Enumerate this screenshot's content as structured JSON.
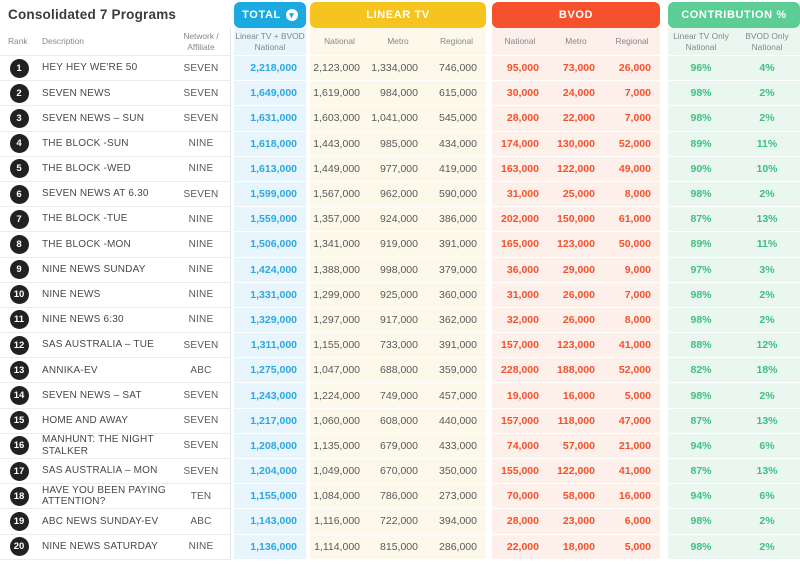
{
  "chart_data": {
    "type": "table",
    "title": "Consolidated 7 Programs",
    "icons": {
      "total_sort": "▾"
    },
    "colors": {
      "total": "#1CA8E1",
      "total_text": "#2BA9E0",
      "total_tint": "#E8F5FC",
      "linear": "#F5C41E",
      "linear_tint": "#FCF8EA",
      "bvod": "#F4512C",
      "bvod_tint": "#FDEFEA",
      "contrib": "#5CCD94",
      "contrib_text": "#3FC07F",
      "contrib_tint": "#EAF6F0"
    },
    "columns": {
      "rank": "Rank",
      "description": "Description",
      "network": "Network /\nAffiliate"
    },
    "groups": {
      "total": {
        "label": "TOTAL",
        "sub": "Linear TV + BVOD\nNational"
      },
      "linear": {
        "label": "LINEAR TV",
        "subs": [
          "National",
          "Metro",
          "Regional"
        ]
      },
      "bvod": {
        "label": "BVOD",
        "subs": [
          "National",
          "Metro",
          "Regional"
        ]
      },
      "contribution": {
        "label": "CONTRIBUTION %",
        "subs": [
          "Linear TV Only\nNational",
          "BVOD Only\nNational"
        ]
      }
    },
    "rows": [
      {
        "rank": "1",
        "description": "HEY HEY WE'RE 50",
        "network": "SEVEN",
        "total": "2,218,000",
        "linear": [
          "2,123,000",
          "1,334,000",
          "746,000"
        ],
        "bvod": [
          "95,000",
          "73,000",
          "26,000"
        ],
        "contribution": [
          "96%",
          "4%"
        ]
      },
      {
        "rank": "2",
        "description": "SEVEN NEWS",
        "network": "SEVEN",
        "total": "1,649,000",
        "linear": [
          "1,619,000",
          "984,000",
          "615,000"
        ],
        "bvod": [
          "30,000",
          "24,000",
          "7,000"
        ],
        "contribution": [
          "98%",
          "2%"
        ]
      },
      {
        "rank": "3",
        "description": "SEVEN NEWS – SUN",
        "network": "SEVEN",
        "total": "1,631,000",
        "linear": [
          "1,603,000",
          "1,041,000",
          "545,000"
        ],
        "bvod": [
          "28,000",
          "22,000",
          "7,000"
        ],
        "contribution": [
          "98%",
          "2%"
        ]
      },
      {
        "rank": "4",
        "description": "THE BLOCK -SUN",
        "network": "NINE",
        "total": "1,618,000",
        "linear": [
          "1,443,000",
          "985,000",
          "434,000"
        ],
        "bvod": [
          "174,000",
          "130,000",
          "52,000"
        ],
        "contribution": [
          "89%",
          "11%"
        ]
      },
      {
        "rank": "5",
        "description": "THE BLOCK -WED",
        "network": "NINE",
        "total": "1,613,000",
        "linear": [
          "1,449,000",
          "977,000",
          "419,000"
        ],
        "bvod": [
          "163,000",
          "122,000",
          "49,000"
        ],
        "contribution": [
          "90%",
          "10%"
        ]
      },
      {
        "rank": "6",
        "description": "SEVEN NEWS AT 6.30",
        "network": "SEVEN",
        "total": "1,599,000",
        "linear": [
          "1,567,000",
          "962,000",
          "590,000"
        ],
        "bvod": [
          "31,000",
          "25,000",
          "8,000"
        ],
        "contribution": [
          "98%",
          "2%"
        ]
      },
      {
        "rank": "7",
        "description": "THE BLOCK -TUE",
        "network": "NINE",
        "total": "1,559,000",
        "linear": [
          "1,357,000",
          "924,000",
          "386,000"
        ],
        "bvod": [
          "202,000",
          "150,000",
          "61,000"
        ],
        "contribution": [
          "87%",
          "13%"
        ]
      },
      {
        "rank": "8",
        "description": "THE BLOCK -MON",
        "network": "NINE",
        "total": "1,506,000",
        "linear": [
          "1,341,000",
          "919,000",
          "391,000"
        ],
        "bvod": [
          "165,000",
          "123,000",
          "50,000"
        ],
        "contribution": [
          "89%",
          "11%"
        ]
      },
      {
        "rank": "9",
        "description": "NINE NEWS SUNDAY",
        "network": "NINE",
        "total": "1,424,000",
        "linear": [
          "1,388,000",
          "998,000",
          "379,000"
        ],
        "bvod": [
          "36,000",
          "29,000",
          "9,000"
        ],
        "contribution": [
          "97%",
          "3%"
        ]
      },
      {
        "rank": "10",
        "description": "NINE NEWS",
        "network": "NINE",
        "total": "1,331,000",
        "linear": [
          "1,299,000",
          "925,000",
          "360,000"
        ],
        "bvod": [
          "31,000",
          "26,000",
          "7,000"
        ],
        "contribution": [
          "98%",
          "2%"
        ]
      },
      {
        "rank": "11",
        "description": "NINE NEWS 6:30",
        "network": "NINE",
        "total": "1,329,000",
        "linear": [
          "1,297,000",
          "917,000",
          "362,000"
        ],
        "bvod": [
          "32,000",
          "26,000",
          "8,000"
        ],
        "contribution": [
          "98%",
          "2%"
        ]
      },
      {
        "rank": "12",
        "description": "SAS AUSTRALIA – TUE",
        "network": "SEVEN",
        "total": "1,311,000",
        "linear": [
          "1,155,000",
          "733,000",
          "391,000"
        ],
        "bvod": [
          "157,000",
          "123,000",
          "41,000"
        ],
        "contribution": [
          "88%",
          "12%"
        ]
      },
      {
        "rank": "13",
        "description": "ANNIKA-EV",
        "network": "ABC",
        "total": "1,275,000",
        "linear": [
          "1,047,000",
          "688,000",
          "359,000"
        ],
        "bvod": [
          "228,000",
          "188,000",
          "52,000"
        ],
        "contribution": [
          "82%",
          "18%"
        ]
      },
      {
        "rank": "14",
        "description": "SEVEN NEWS – SAT",
        "network": "SEVEN",
        "total": "1,243,000",
        "linear": [
          "1,224,000",
          "749,000",
          "457,000"
        ],
        "bvod": [
          "19,000",
          "16,000",
          "5,000"
        ],
        "contribution": [
          "98%",
          "2%"
        ]
      },
      {
        "rank": "15",
        "description": "HOME AND AWAY",
        "network": "SEVEN",
        "total": "1,217,000",
        "linear": [
          "1,060,000",
          "608,000",
          "440,000"
        ],
        "bvod": [
          "157,000",
          "118,000",
          "47,000"
        ],
        "contribution": [
          "87%",
          "13%"
        ]
      },
      {
        "rank": "16",
        "description": "MANHUNT: THE NIGHT STALKER",
        "network": "SEVEN",
        "total": "1,208,000",
        "linear": [
          "1,135,000",
          "679,000",
          "433,000"
        ],
        "bvod": [
          "74,000",
          "57,000",
          "21,000"
        ],
        "contribution": [
          "94%",
          "6%"
        ]
      },
      {
        "rank": "17",
        "description": "SAS AUSTRALIA – MON",
        "network": "SEVEN",
        "total": "1,204,000",
        "linear": [
          "1,049,000",
          "670,000",
          "350,000"
        ],
        "bvod": [
          "155,000",
          "122,000",
          "41,000"
        ],
        "contribution": [
          "87%",
          "13%"
        ]
      },
      {
        "rank": "18",
        "description": "HAVE YOU BEEN PAYING ATTENTION?",
        "network": "TEN",
        "total": "1,155,000",
        "linear": [
          "1,084,000",
          "786,000",
          "273,000"
        ],
        "bvod": [
          "70,000",
          "58,000",
          "16,000"
        ],
        "contribution": [
          "94%",
          "6%"
        ]
      },
      {
        "rank": "19",
        "description": "ABC NEWS SUNDAY-EV",
        "network": "ABC",
        "total": "1,143,000",
        "linear": [
          "1,116,000",
          "722,000",
          "394,000"
        ],
        "bvod": [
          "28,000",
          "23,000",
          "6,000"
        ],
        "contribution": [
          "98%",
          "2%"
        ]
      },
      {
        "rank": "20",
        "description": "NINE NEWS SATURDAY",
        "network": "NINE",
        "total": "1,136,000",
        "linear": [
          "1,114,000",
          "815,000",
          "286,000"
        ],
        "bvod": [
          "22,000",
          "18,000",
          "5,000"
        ],
        "contribution": [
          "98%",
          "2%"
        ]
      }
    ]
  }
}
